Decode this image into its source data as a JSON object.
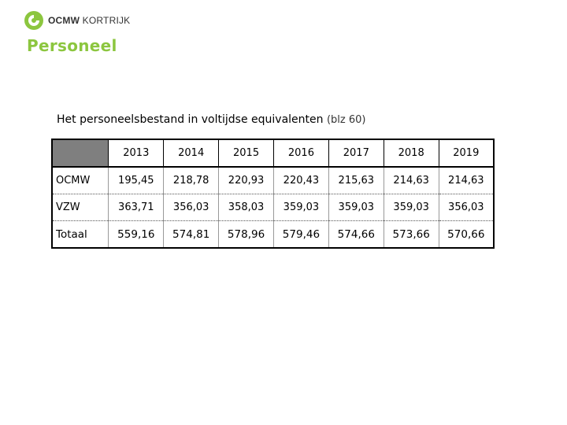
{
  "logo": {
    "brand_bold": "OCMW",
    "brand_rest": " KORTRIJK"
  },
  "page": {
    "title": "Personeel"
  },
  "table_title": {
    "text": "Het personeelsbestand in voltijdse equivalenten",
    "ref": "(blz 60)"
  },
  "table": {
    "headers": [
      "",
      "2013",
      "2014",
      "2015",
      "2016",
      "2017",
      "2018",
      "2019"
    ],
    "rows": [
      {
        "label": "OCMW",
        "values": [
          "195,45",
          "218,78",
          "220,93",
          "220,43",
          "215,63",
          "214,63",
          "214,63"
        ]
      },
      {
        "label": "VZW",
        "values": [
          "363,71",
          "356,03",
          "358,03",
          "359,03",
          "359,03",
          "359,03",
          "356,03"
        ]
      },
      {
        "label": "Totaal",
        "values": [
          "559,16",
          "574,81",
          "578,96",
          "579,46",
          "574,66",
          "573,66",
          "570,66"
        ]
      }
    ]
  },
  "colors": {
    "accent": "#8cc63f",
    "header_corner": "#7f7f7f",
    "logo_circle": "#8cc63f"
  }
}
